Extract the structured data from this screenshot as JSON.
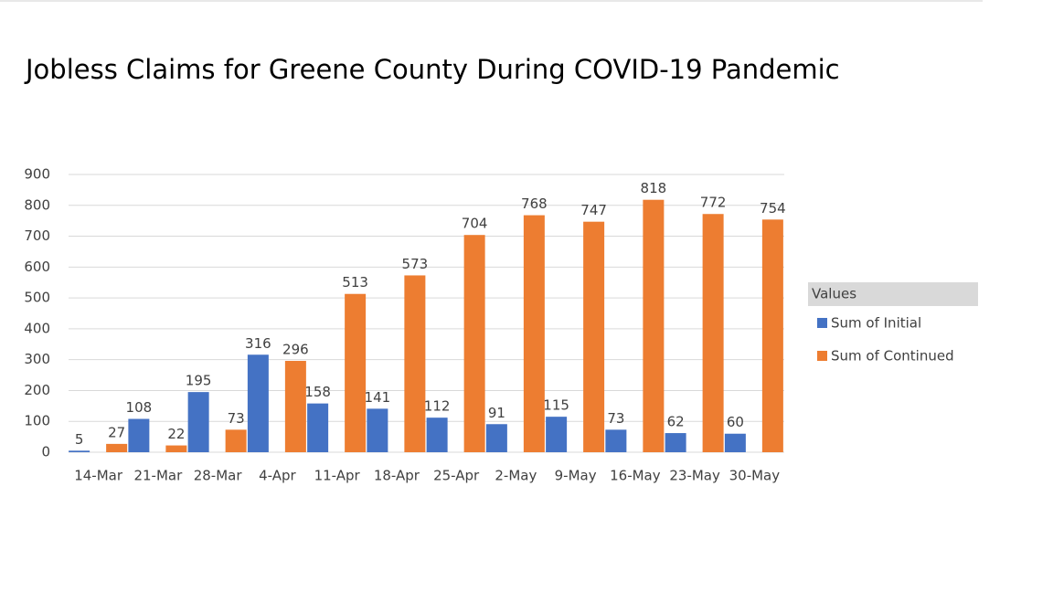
{
  "chart_data": {
    "type": "bar",
    "title": "Jobless Claims for Greene County During COVID-19 Pandemic",
    "categories": [
      "14-Mar",
      "21-Mar",
      "28-Mar",
      "4-Apr",
      "11-Apr",
      "18-Apr",
      "25-Apr",
      "2-May",
      "9-May",
      "16-May",
      "23-May",
      "30-May"
    ],
    "series": [
      {
        "name": "Sum of Initial",
        "color": "#4472c4",
        "values": [
          5,
          108,
          195,
          316,
          158,
          141,
          112,
          91,
          115,
          73,
          62,
          60
        ]
      },
      {
        "name": "Sum of Continued",
        "color": "#ed7d31",
        "values": [
          27,
          22,
          73,
          296,
          513,
          573,
          704,
          768,
          747,
          818,
          772,
          754
        ]
      }
    ],
    "ylim": [
      0,
      900
    ],
    "yticks": [
      0,
      100,
      200,
      300,
      400,
      500,
      600,
      700,
      800,
      900
    ],
    "grid": true,
    "legend_title": "Values",
    "legend": "right"
  }
}
